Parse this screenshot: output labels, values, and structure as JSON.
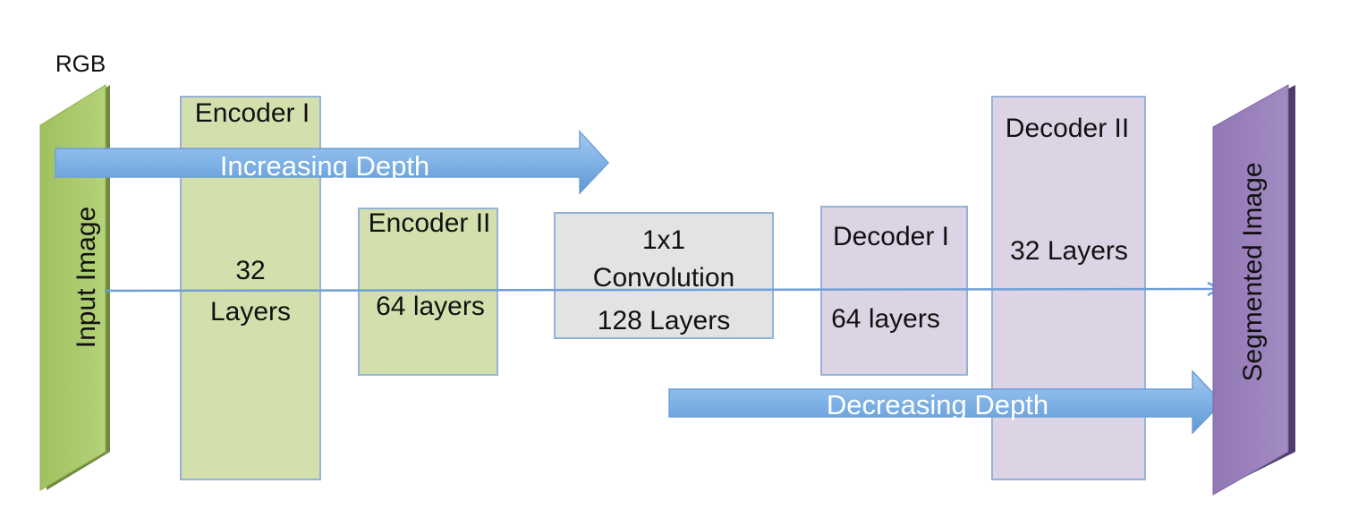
{
  "input_panel": {
    "top_label": "RGB",
    "label": "Input Image",
    "color": "#a9c96a"
  },
  "encoder_1": {
    "title": "Encoder I",
    "line1": "32",
    "line2": "Layers",
    "color": "#d3e0ad"
  },
  "encoder_2": {
    "title": "Encoder II",
    "line1": "64 layers",
    "color": "#d3e0ad"
  },
  "convolution": {
    "line1": "1x1",
    "line2": "Convolution",
    "line3": "128 Layers",
    "color": "#e3e3e3"
  },
  "decoder_1": {
    "title": "Decoder I",
    "line1": "64 layers",
    "color": "#dcd3e5"
  },
  "decoder_2": {
    "title": "Decoder II",
    "line1": "32 Layers",
    "color": "#dcd3e5"
  },
  "output_panel": {
    "label": "Segmented Image",
    "color": "#9a82bb"
  },
  "arrows": {
    "increasing": "Increasing Depth",
    "decreasing": "Decreasing Depth",
    "color": "#7fb2e6",
    "border_color": "#7aa7d6"
  }
}
